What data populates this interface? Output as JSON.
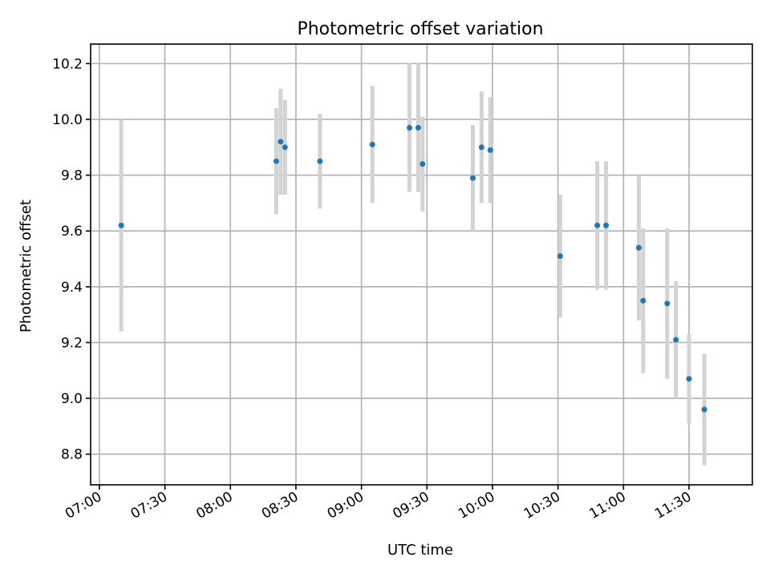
{
  "chart_data": {
    "type": "scatter",
    "title": "Photometric offset variation",
    "xlabel": "UTC time",
    "ylabel": "Photometric offset",
    "x_ticks": [
      "07:00",
      "07:30",
      "08:00",
      "08:30",
      "09:00",
      "09:30",
      "10:00",
      "10:30",
      "11:00",
      "11:30"
    ],
    "y_ticks": [
      "8.8",
      "9.0",
      "9.2",
      "9.4",
      "9.6",
      "9.8",
      "10.0",
      "10.2"
    ],
    "xlim": [
      "06:56",
      "11:59"
    ],
    "ylim": [
      8.69,
      10.27
    ],
    "grid": true,
    "colors": {
      "point": "#1f77b4",
      "errorbar": "#d3d3d3"
    },
    "points": [
      {
        "x": "07:10",
        "y": 9.62,
        "err": 0.38
      },
      {
        "x": "08:21",
        "y": 9.85,
        "err": 0.19
      },
      {
        "x": "08:23",
        "y": 9.92,
        "err": 0.19
      },
      {
        "x": "08:25",
        "y": 9.9,
        "err": 0.17
      },
      {
        "x": "08:41",
        "y": 9.85,
        "err": 0.17
      },
      {
        "x": "09:05",
        "y": 9.91,
        "err": 0.21
      },
      {
        "x": "09:22",
        "y": 9.97,
        "err": 0.23
      },
      {
        "x": "09:26",
        "y": 9.97,
        "err": 0.23
      },
      {
        "x": "09:28",
        "y": 9.84,
        "err": 0.17
      },
      {
        "x": "09:51",
        "y": 9.79,
        "err": 0.19
      },
      {
        "x": "09:55",
        "y": 9.9,
        "err": 0.2
      },
      {
        "x": "09:59",
        "y": 9.89,
        "err": 0.19
      },
      {
        "x": "10:31",
        "y": 9.51,
        "err": 0.22
      },
      {
        "x": "10:48",
        "y": 9.62,
        "err": 0.23
      },
      {
        "x": "10:52",
        "y": 9.62,
        "err": 0.23
      },
      {
        "x": "11:07",
        "y": 9.54,
        "err": 0.26
      },
      {
        "x": "11:09",
        "y": 9.35,
        "err": 0.26
      },
      {
        "x": "11:20",
        "y": 9.34,
        "err": 0.27
      },
      {
        "x": "11:24",
        "y": 9.21,
        "err": 0.21
      },
      {
        "x": "11:30",
        "y": 9.07,
        "err": 0.16
      },
      {
        "x": "11:37",
        "y": 8.96,
        "err": 0.2
      }
    ]
  }
}
